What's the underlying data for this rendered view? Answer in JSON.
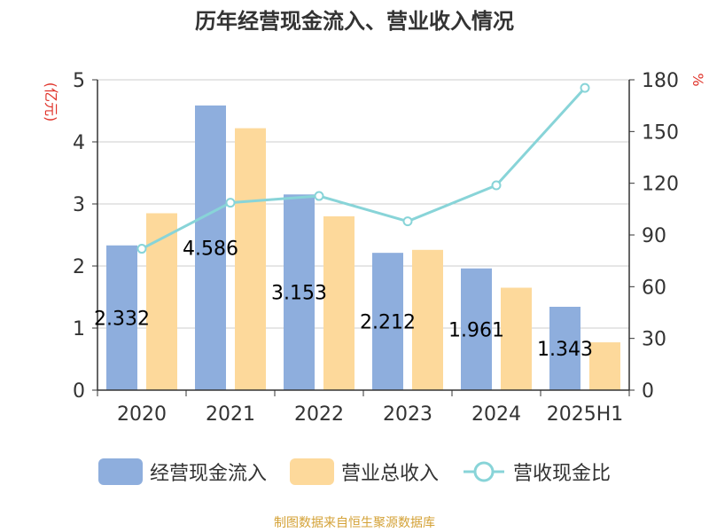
{
  "chart_data": {
    "type": "bar",
    "title": "历年经营现金流入、营业收入情况",
    "categories": [
      "2020",
      "2021",
      "2022",
      "2023",
      "2024",
      "2025H1"
    ],
    "series": [
      {
        "name": "经营现金流入",
        "type": "bar",
        "axis": "left",
        "color": "#8eaedd",
        "values": [
          2.332,
          4.586,
          3.153,
          2.212,
          1.961,
          1.343
        ],
        "data_labels": [
          "2.332",
          "4.586",
          "3.153",
          "2.212",
          "1.961",
          "1.343"
        ]
      },
      {
        "name": "营业总收入",
        "type": "bar",
        "axis": "left",
        "color": "#fdd99b",
        "values": [
          2.85,
          4.22,
          2.8,
          2.26,
          1.65,
          0.77
        ]
      },
      {
        "name": "营收现金比",
        "type": "line",
        "axis": "right",
        "color": "#88d4d8",
        "values": [
          82,
          108.7,
          112.6,
          97.9,
          118.8,
          175.3
        ]
      }
    ],
    "y_left": {
      "label": "(亿元)",
      "ticks": [
        "0",
        "1",
        "2",
        "3",
        "4",
        "5"
      ],
      "ylim": [
        0,
        5
      ]
    },
    "y_right": {
      "label": "%",
      "ticks": [
        "0",
        "30",
        "60",
        "90",
        "120",
        "150",
        "180"
      ],
      "ylim": [
        0,
        180
      ]
    },
    "grid": true,
    "legend_position": "bottom"
  },
  "colors": {
    "axis_label_red": "#e0332a",
    "gridline": "#cccccc",
    "source_text": "#d4a237"
  },
  "source_note": "制图数据来自恒生聚源数据库"
}
